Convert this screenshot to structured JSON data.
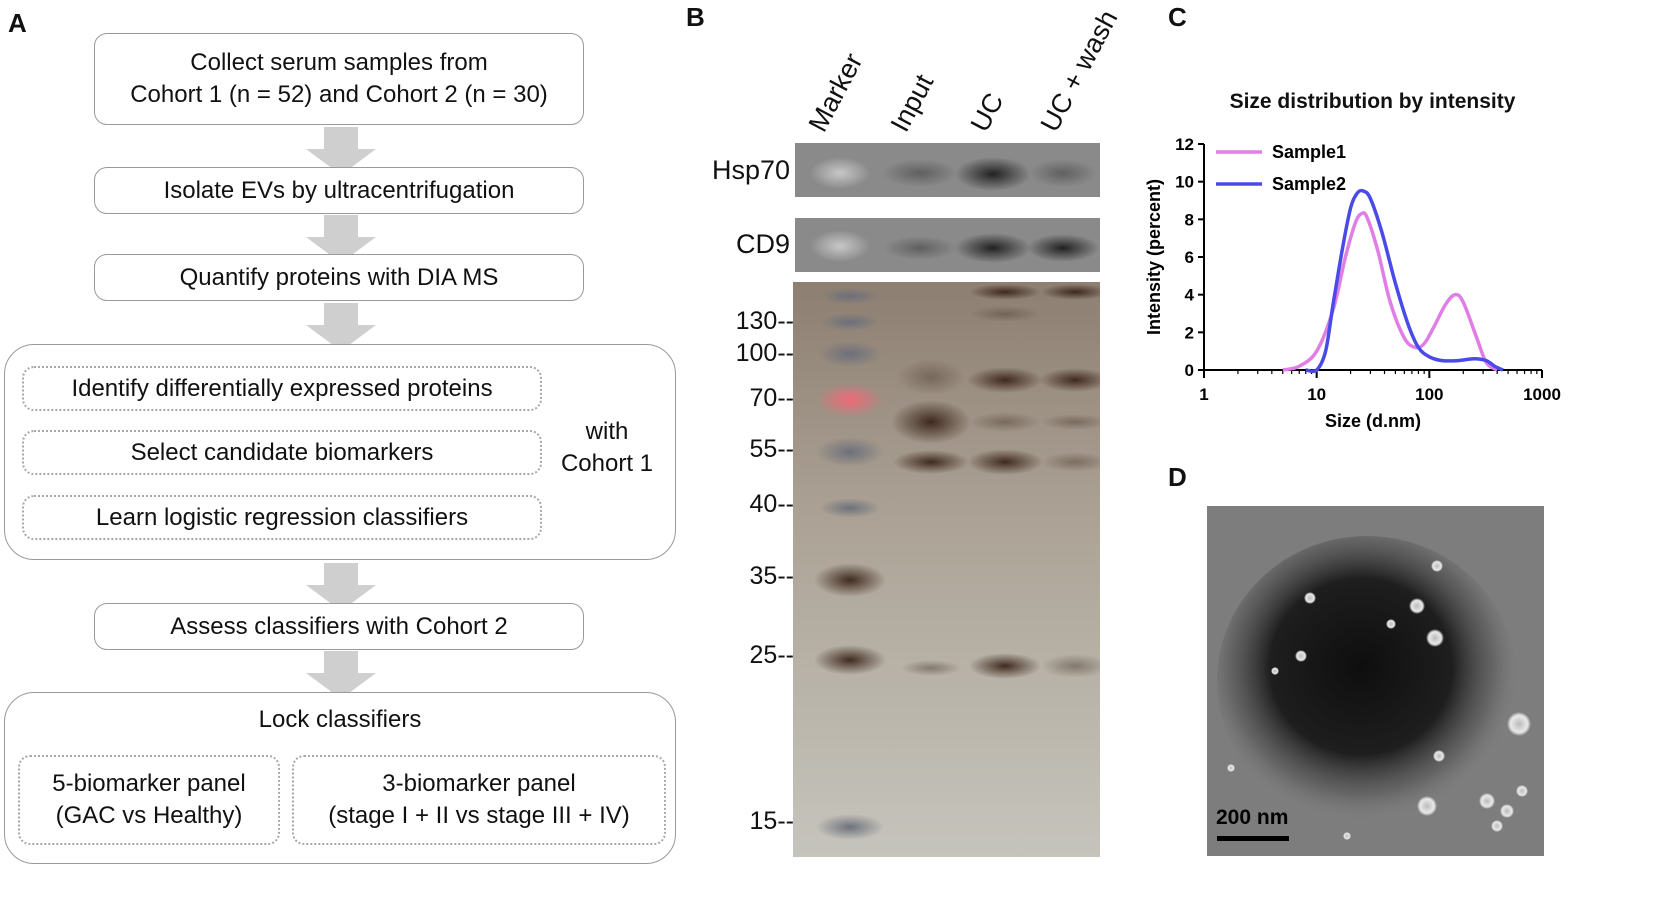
{
  "panels": {
    "a": "A",
    "b": "B",
    "c": "C",
    "d": "D"
  },
  "flow": {
    "step1": [
      "Collect serum samples from",
      "Cohort 1 (n = 52) and Cohort 2 (n = 30)"
    ],
    "step2": "Isolate EVs by ultracentrifugation",
    "step3": "Quantify proteins with DIA MS",
    "group1": {
      "items": [
        "Identify differentially expressed proteins",
        "Select candidate biomarkers",
        "Learn logistic regression classifiers"
      ],
      "note": [
        "with",
        "Cohort 1"
      ]
    },
    "step4": "Assess classifiers with Cohort 2",
    "lock": {
      "title": "Lock classifiers",
      "panel1": [
        "5-biomarker panel",
        "(GAC vs Healthy)"
      ],
      "panel2": [
        "3-biomarker panel",
        "(stage I + II vs stage III + IV)"
      ]
    }
  },
  "blot": {
    "lanes": [
      "Marker",
      "Input",
      "UC",
      "UC + wash"
    ],
    "rows": [
      "Hsp70",
      "CD9"
    ],
    "markers": [
      "130--",
      "100--",
      "70--",
      "55--",
      "40--",
      "35--",
      "25--",
      "15--"
    ]
  },
  "chart_data": {
    "type": "line",
    "title": "Size distribution by intensity",
    "xlabel": "Size (d.nm)",
    "ylabel": "Intensity (percent)",
    "xscale": "log",
    "xlim": [
      1,
      1000
    ],
    "ylim": [
      0,
      12
    ],
    "xticks": [
      "1",
      "10",
      "100",
      "1000"
    ],
    "yticks": [
      "0",
      "2",
      "4",
      "6",
      "8",
      "10",
      "12"
    ],
    "legend": "top-left",
    "series": [
      {
        "name": "Sample1",
        "color": "#e07ee6",
        "x": [
          5,
          7,
          10,
          14,
          18,
          22,
          25,
          28,
          35,
          45,
          60,
          75,
          90,
          110,
          140,
          170,
          200,
          260,
          320,
          400
        ],
        "y": [
          0,
          0.2,
          1.0,
          3.2,
          6.0,
          7.8,
          8.3,
          8.1,
          6.3,
          3.6,
          1.7,
          1.2,
          1.4,
          2.3,
          3.5,
          4.0,
          3.6,
          1.8,
          0.4,
          0
        ]
      },
      {
        "name": "Sample2",
        "color": "#4a4ae8",
        "x": [
          8,
          10,
          12,
          14,
          17,
          20,
          23,
          26,
          30,
          38,
          50,
          65,
          80,
          100,
          130,
          180,
          250,
          320,
          380,
          450
        ],
        "y": [
          0,
          0,
          1.0,
          3.5,
          6.5,
          8.6,
          9.4,
          9.5,
          9.1,
          7.3,
          4.6,
          2.4,
          1.2,
          0.7,
          0.5,
          0.5,
          0.6,
          0.5,
          0.2,
          0
        ]
      }
    ]
  },
  "tem": {
    "scale": "200 nm"
  }
}
